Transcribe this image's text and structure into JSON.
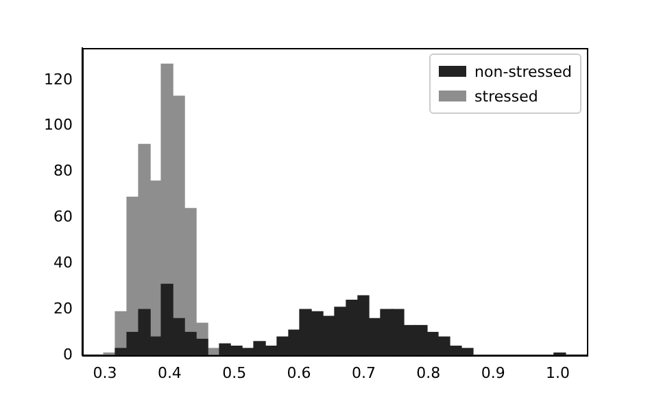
{
  "chart_data": {
    "type": "histogram",
    "xlim": [
      0.265,
      1.045
    ],
    "ylim": [
      0,
      134
    ],
    "xticks": [
      0.3,
      0.4,
      0.5,
      0.6,
      0.7,
      0.8,
      0.9,
      {
        "value": 1,
        "label": "1.0"
      }
    ],
    "yticks": [
      0,
      20,
      40,
      60,
      80,
      100,
      120
    ],
    "legend": "top right",
    "bins": [
      0.298,
      0.316,
      0.334,
      0.352,
      0.37,
      0.387,
      0.405,
      0.423,
      0.441,
      0.459,
      0.477,
      0.494,
      0.512,
      0.53,
      0.548,
      0.566,
      0.584,
      0.601,
      0.619,
      0.637,
      0.655,
      0.673,
      0.691,
      0.708,
      0.726,
      0.744,
      0.762,
      0.78,
      0.798,
      0.815,
      0.833,
      0.851,
      0.869,
      0.887,
      0.905,
      0.922,
      0.94,
      0.958,
      0.976,
      0.994,
      1.012
    ],
    "series": [
      {
        "name": "non-stressed",
        "color": "#222222",
        "values": [
          0,
          3,
          10,
          20,
          8,
          31,
          16,
          10,
          7,
          0,
          5,
          4,
          3,
          6,
          4,
          8,
          11,
          20,
          19,
          17,
          21,
          24,
          26,
          16,
          20,
          20,
          13,
          13,
          10,
          8,
          4,
          3,
          0,
          0,
          0,
          0,
          0,
          0,
          0,
          1
        ]
      },
      {
        "name": "stressed",
        "color": "#8e8e8e",
        "values": [
          1,
          19,
          69,
          92,
          76,
          127,
          113,
          64,
          14,
          3,
          0,
          0,
          0,
          0,
          0,
          0,
          0,
          0,
          0,
          0,
          0,
          0,
          0,
          0,
          0,
          0,
          0,
          0,
          0,
          0,
          0,
          0,
          0,
          0,
          0,
          0,
          0,
          0,
          0,
          0
        ]
      }
    ]
  }
}
